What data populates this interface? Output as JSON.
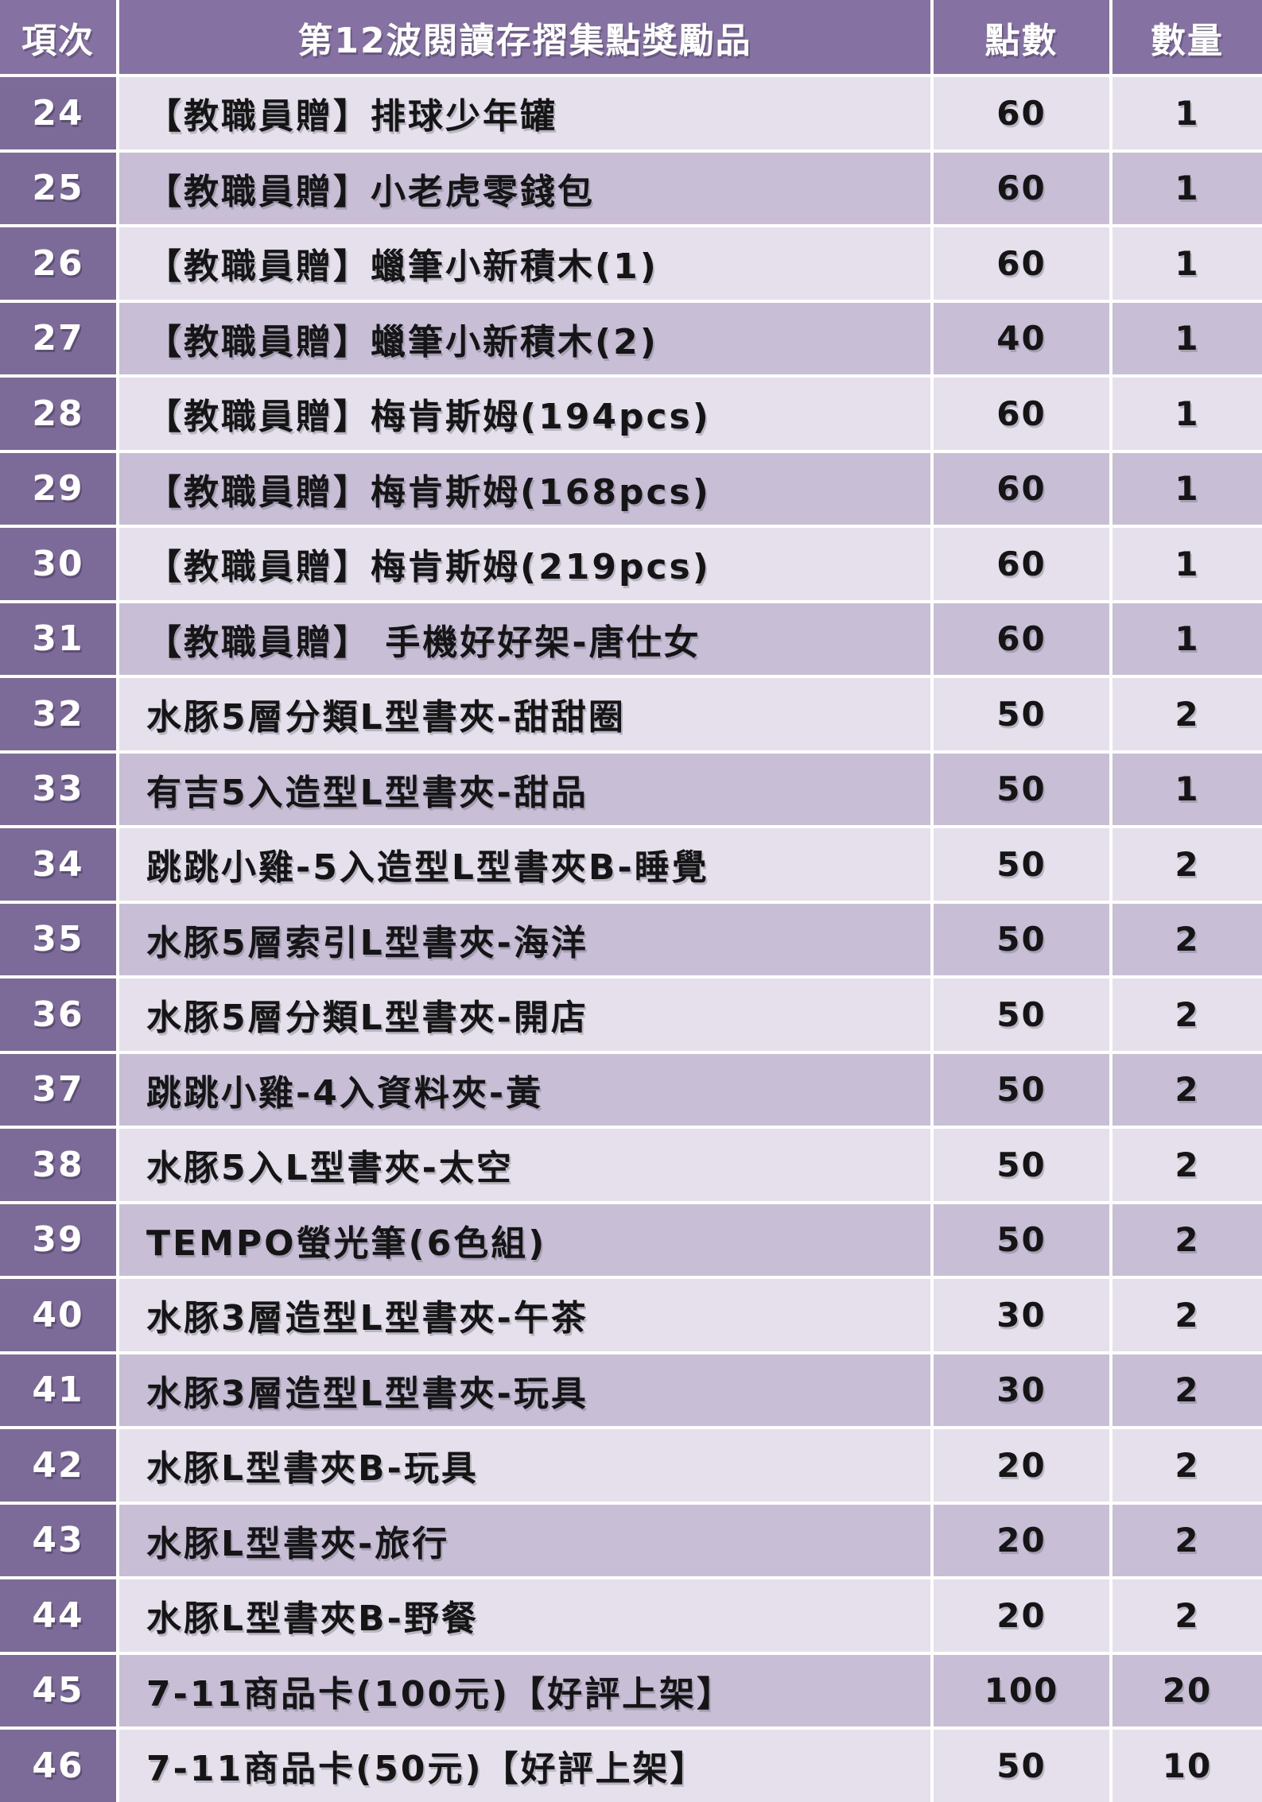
{
  "table": {
    "header": {
      "item_no": "項次",
      "title": "第12波閱讀存摺集點獎勵品",
      "points": "點數",
      "quantity": "數量"
    },
    "rows": [
      {
        "no": "24",
        "name": "【教職員贈】排球少年罐",
        "points": "60",
        "qty": "1"
      },
      {
        "no": "25",
        "name": "【教職員贈】小老虎零錢包",
        "points": "60",
        "qty": "1"
      },
      {
        "no": "26",
        "name": "【教職員贈】蠟筆小新積木(1)",
        "points": "60",
        "qty": "1"
      },
      {
        "no": "27",
        "name": "【教職員贈】蠟筆小新積木(2)",
        "points": "40",
        "qty": "1"
      },
      {
        "no": "28",
        "name": "【教職員贈】梅肯斯姆(194pcs)",
        "points": "60",
        "qty": "1"
      },
      {
        "no": "29",
        "name": "【教職員贈】梅肯斯姆(168pcs)",
        "points": "60",
        "qty": "1"
      },
      {
        "no": "30",
        "name": "【教職員贈】梅肯斯姆(219pcs)",
        "points": "60",
        "qty": "1"
      },
      {
        "no": "31",
        "name": "【教職員贈】 手機好好架-唐仕女",
        "points": "60",
        "qty": "1"
      },
      {
        "no": "32",
        "name": "水豚5層分類L型書夾-甜甜圈",
        "points": "50",
        "qty": "2"
      },
      {
        "no": "33",
        "name": "有吉5入造型L型書夾-甜品",
        "points": "50",
        "qty": "1"
      },
      {
        "no": "34",
        "name": "跳跳小雞-5入造型L型書夾B-睡覺",
        "points": "50",
        "qty": "2"
      },
      {
        "no": "35",
        "name": "水豚5層索引L型書夾-海洋",
        "points": "50",
        "qty": "2"
      },
      {
        "no": "36",
        "name": "水豚5層分類L型書夾-開店",
        "points": "50",
        "qty": "2"
      },
      {
        "no": "37",
        "name": "跳跳小雞-4入資料夾-黃",
        "points": "50",
        "qty": "2"
      },
      {
        "no": "38",
        "name": "水豚5入L型書夾-太空",
        "points": "50",
        "qty": "2"
      },
      {
        "no": "39",
        "name": "TEMPO螢光筆(6色組)",
        "points": "50",
        "qty": "2"
      },
      {
        "no": "40",
        "name": "水豚3層造型L型書夾-午茶",
        "points": "30",
        "qty": "2"
      },
      {
        "no": "41",
        "name": "水豚3層造型L型書夾-玩具",
        "points": "30",
        "qty": "2"
      },
      {
        "no": "42",
        "name": "水豚L型書夾B-玩具",
        "points": "20",
        "qty": "2"
      },
      {
        "no": "43",
        "name": "水豚L型書夾-旅行",
        "points": "20",
        "qty": "2"
      },
      {
        "no": "44",
        "name": "水豚L型書夾B-野餐",
        "points": "20",
        "qty": "2"
      },
      {
        "no": "45",
        "name": "7-11商品卡(100元)【好評上架】",
        "points": "100",
        "qty": "20"
      },
      {
        "no": "46",
        "name": "7-11商品卡(50元)【好評上架】",
        "points": "50",
        "qty": "10"
      }
    ]
  },
  "colors": {
    "header_bg": "#8672A2",
    "index_column_bg": "#7C6A99",
    "row_light_bg": "#E5E0EC",
    "row_medium_bg": "#C8BFD7",
    "grid_line": "#FFFFFF",
    "body_text": "#151515",
    "header_text": "#FFFFFF"
  }
}
